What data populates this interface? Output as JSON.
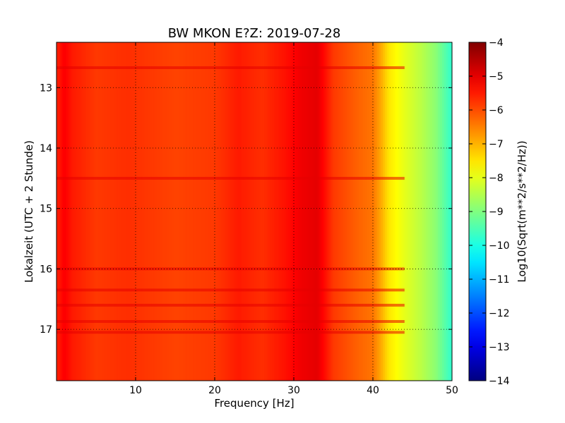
{
  "chart_data": {
    "type": "heatmap",
    "title": "BW MKON E?Z: 2019-07-28",
    "xlabel": "Frequency [Hz]",
    "ylabel": "Lokalzeit (UTC + 2 Stunde)",
    "xlim": [
      0,
      50
    ],
    "ylim": [
      17.85,
      12.25
    ],
    "x_ticks": [
      10,
      20,
      30,
      40,
      50
    ],
    "y_ticks": [
      13,
      14,
      15,
      16,
      17
    ],
    "grid": true,
    "colormap": "jet",
    "colorbar": {
      "label": "Log10(Sqrt(m**2/s**2/Hz))",
      "range": [
        -14,
        -4
      ],
      "ticks": [
        -4,
        -5,
        -6,
        -7,
        -8,
        -9,
        -10,
        -11,
        -12,
        -13,
        -14
      ]
    },
    "spectral_profile": [
      {
        "f": 0,
        "v": -5.6
      },
      {
        "f": 1,
        "v": -5.2
      },
      {
        "f": 2,
        "v": -5.5
      },
      {
        "f": 5,
        "v": -5.8
      },
      {
        "f": 9,
        "v": -5.7
      },
      {
        "f": 15,
        "v": -5.9
      },
      {
        "f": 20,
        "v": -5.8
      },
      {
        "f": 23,
        "v": -5.5
      },
      {
        "f": 26,
        "v": -5.7
      },
      {
        "f": 29,
        "v": -5.4
      },
      {
        "f": 31,
        "v": -5.1
      },
      {
        "f": 33,
        "v": -5.0
      },
      {
        "f": 35,
        "v": -5.8
      },
      {
        "f": 38,
        "v": -6.2
      },
      {
        "f": 40,
        "v": -6.4
      },
      {
        "f": 41,
        "v": -6.9
      },
      {
        "f": 42,
        "v": -7.5
      },
      {
        "f": 44,
        "v": -8.0
      },
      {
        "f": 46,
        "v": -8.4
      },
      {
        "f": 48,
        "v": -8.9
      },
      {
        "f": 50,
        "v": -9.8
      }
    ],
    "high_power_times": [
      12.67,
      14.5,
      16.0,
      16.35,
      16.6,
      16.87,
      17.05
    ],
    "colors": {
      "background": "#ffffff",
      "axis": "#000000"
    }
  }
}
